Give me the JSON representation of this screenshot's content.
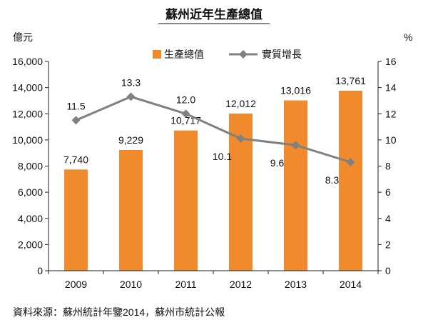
{
  "chart_data": {
    "type": "bar",
    "title": "蘇州近年生產總值",
    "categories": [
      "2009",
      "2010",
      "2011",
      "2012",
      "2013",
      "2014"
    ],
    "series": [
      {
        "name": "生產總值",
        "type": "bar",
        "axis": "left",
        "color": "#F08A2C",
        "values": [
          7740,
          9229,
          10717,
          12012,
          13016,
          13761
        ],
        "labels": [
          "7,740",
          "9,229",
          "10,717",
          "12,012",
          "13,016",
          "13,761"
        ]
      },
      {
        "name": "實質增長",
        "type": "line",
        "axis": "right",
        "color": "#808080",
        "values": [
          11.5,
          13.3,
          12.0,
          10.1,
          9.6,
          8.3
        ],
        "labels": [
          "11.5",
          "13.3",
          "12.0",
          "10.1",
          "9.6",
          "8.3"
        ]
      }
    ],
    "y_left": {
      "unit": "億元",
      "min": 0,
      "max": 16000,
      "ticks": [
        0,
        2000,
        4000,
        6000,
        8000,
        10000,
        12000,
        14000,
        16000
      ],
      "tick_labels": [
        "0",
        "2,000",
        "4,000",
        "6,000",
        "8,000",
        "10,000",
        "12,000",
        "14,000",
        "16,000"
      ]
    },
    "y_right": {
      "unit": "%",
      "min": 0,
      "max": 16,
      "ticks": [
        0,
        2,
        4,
        6,
        8,
        10,
        12,
        14,
        16
      ],
      "tick_labels": [
        "0",
        "2",
        "4",
        "6",
        "8",
        "10",
        "12",
        "14",
        "16"
      ]
    },
    "grid": false,
    "legend_position": "top-center",
    "source": "資料來源：蘇州統計年鑒2014，蘇州市統計公報"
  }
}
